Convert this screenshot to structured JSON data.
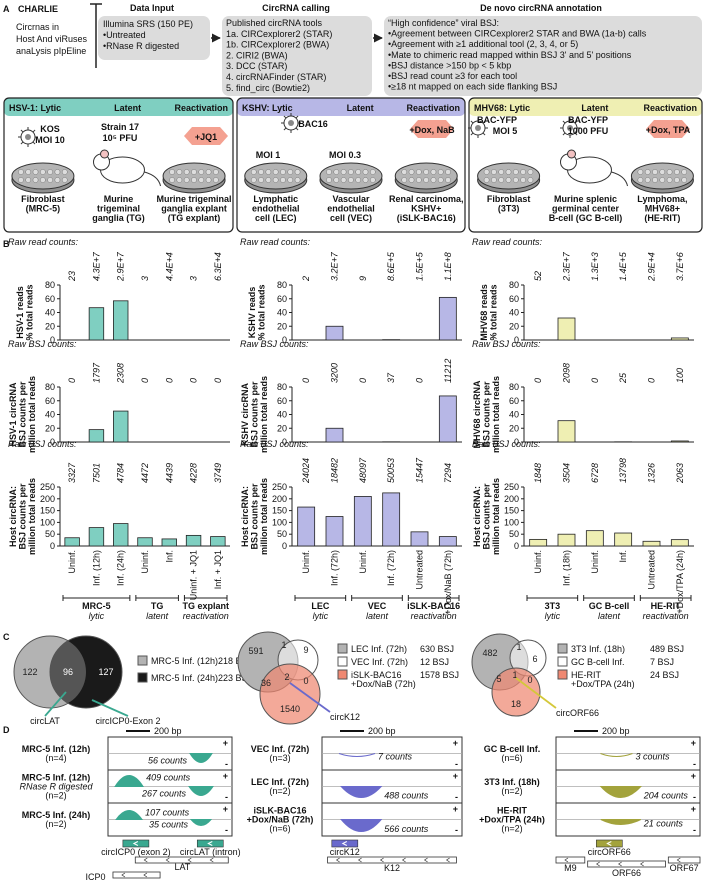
{
  "panel_labels": [
    "A",
    "B",
    "C",
    "D"
  ],
  "panel_a": {
    "charlie": {
      "title": "CHARLIE",
      "lines": [
        "Circrnas in",
        "Host And viRuses",
        "anaLysis pIpEline"
      ]
    },
    "data_input": {
      "title": "Data Input",
      "lines": [
        "Illumina SRS (150 PE)",
        "•Untreated",
        "•RNase R digested"
      ]
    },
    "circrna_calling": {
      "title": "CircRNA calling",
      "lines": [
        "Published circRNA tools",
        "1a. CIRCexplorer2 (STAR)",
        "1b. CIRCexplorer2 (BWA)",
        "2. CIRI2 (BWA)",
        "3. DCC (STAR)",
        "4. circRNAFinder (STAR)",
        "5. find_circ (Bowtie2)"
      ]
    },
    "annotation": {
      "title": "De novo circRNA annotation",
      "lines": [
        "“High confidence” viral BSJ:",
        "•Agreement between CIRCexplorer2 STAR and BWA (1a-b) calls",
        "•Agreement with ≥1 additional tool (2, 3, 4, or 5)",
        "•Mate to chimeric read mapped within BSJ 3' and 5' positions",
        "•BSJ distance >150 bp < 5 kbp",
        "•BSJ read count ≥3 for each tool",
        "•≥18 nt mapped on each side flanking BSJ"
      ]
    },
    "viruses": [
      {
        "header": [
          "HSV-1: Lytic",
          "Latent",
          "Reactivation"
        ],
        "color": "#7fcfc1",
        "annotations": [
          "KOS",
          "MOI 10",
          "Strain 17",
          "10⁵ PFU",
          "+JQ1"
        ],
        "cells": [
          [
            "Fibroblast",
            "(MRC-5)"
          ],
          [
            "Murine",
            "trigeminal",
            "ganglia (TG)"
          ],
          [
            "Murine trigeminal",
            "ganglia explant",
            "(TG explant)"
          ]
        ]
      },
      {
        "header": [
          "KSHV: Lytic",
          "Latent",
          "Reactivation"
        ],
        "color": "#b7b7e6",
        "annotations": [
          "BAC16",
          "MOI 1",
          "MOI 0.3",
          "+Dox, NaB"
        ],
        "cells": [
          [
            "Lymphatic",
            "endothelial",
            "cell (LEC)"
          ],
          [
            "Vascular",
            "endothelial",
            "cell (VEC)"
          ],
          [
            "Renal carcinoma,",
            "KSHV+",
            "(iSLK-BAC16)"
          ]
        ]
      },
      {
        "header": [
          "MHV68: Lytic",
          "Latent",
          "Reactivation"
        ],
        "color": "#efefb3",
        "annotations": [
          "BAC-YFP",
          "MOI 5",
          "BAC-YFP",
          "1000 PFU",
          "+Dox, TPA"
        ],
        "cells": [
          [
            "Fibroblast",
            "(3T3)"
          ],
          [
            "Murine splenic",
            "germinal center",
            "B-cell (GC B-cell)"
          ],
          [
            "Lymphoma,",
            "MHV68+",
            "(HE-RIT)"
          ]
        ]
      }
    ]
  },
  "chart_data": [
    {
      "type": "bar",
      "raw_label": "Raw read counts:",
      "raw_counts": [
        "23",
        "4.3E+7",
        "2.9E+7",
        "3",
        "4.4E+4",
        "3",
        "6.3E+4"
      ],
      "ylabel": [
        "HSV-1 reads",
        "% total reads"
      ],
      "values": [
        0,
        47,
        57,
        0,
        0,
        0,
        0
      ],
      "color": "#7fcfc1",
      "ylim": [
        0,
        80
      ],
      "yticks": [
        0,
        20,
        40,
        60,
        80
      ]
    },
    {
      "type": "bar",
      "raw_label": "Raw BSJ counts:",
      "raw_counts": [
        "0",
        "1797",
        "2308",
        "0",
        "0",
        "0",
        "0"
      ],
      "ylabel": [
        "HSV-1 circRNA",
        "BSJ counts per",
        "million total reads"
      ],
      "values": [
        0,
        18,
        45,
        0,
        0,
        0,
        0
      ],
      "color": "#7fcfc1",
      "ylim": [
        0,
        80
      ],
      "yticks": [
        0,
        20,
        40,
        60,
        80
      ]
    },
    {
      "type": "bar",
      "raw_label": "Raw BSJ counts:",
      "raw_counts": [
        "3327",
        "7501",
        "4784",
        "4472",
        "4439",
        "4228",
        "3749"
      ],
      "ylabel": [
        "Host circRNA:",
        "BSJ counts per",
        "million total reads"
      ],
      "values": [
        35,
        78,
        95,
        35,
        30,
        45,
        40
      ],
      "color": "#7fcfc1",
      "ylim": [
        0,
        250
      ],
      "yticks": [
        0,
        50,
        100,
        150,
        200,
        250
      ],
      "categories": [
        "Uninf.",
        "Inf. (12h)",
        "Inf. (24h)",
        "Uninf.",
        "Inf.",
        "Uninf. + JQ1",
        "Inf. + JQ1"
      ],
      "groups": [
        {
          "name": "MRC-5",
          "role": "lytic"
        },
        {
          "name": "TG",
          "role": "latent"
        },
        {
          "name": "TG explant",
          "role": "reactivation"
        }
      ]
    },
    {
      "type": "bar",
      "raw_label": "Raw read counts:",
      "raw_counts": [
        "2",
        "3.2E+7",
        "9",
        "8.6E+5",
        "1.5E+5",
        "1.1E+8"
      ],
      "ylabel": [
        "KSHV reads",
        "% total reads"
      ],
      "values": [
        0,
        20,
        0,
        0.5,
        0.1,
        62
      ],
      "color": "#b7b7e6",
      "ylim": [
        0,
        80
      ],
      "yticks": [
        0,
        20,
        40,
        60,
        80
      ]
    },
    {
      "type": "bar",
      "raw_label": "Raw BSJ counts:",
      "raw_counts": [
        "0",
        "3200",
        "0",
        "37",
        "0",
        "11212"
      ],
      "ylabel": [
        "KSHV circRNA",
        "BSJ counts per",
        "million total reads"
      ],
      "values": [
        0,
        20,
        0,
        0.3,
        0,
        67
      ],
      "color": "#b7b7e6",
      "ylim": [
        0,
        80
      ],
      "yticks": [
        0,
        20,
        40,
        60,
        80
      ]
    },
    {
      "type": "bar",
      "raw_label": "Raw BSJ counts:",
      "raw_counts": [
        "24024",
        "18482",
        "48097",
        "50053",
        "15447",
        "7294"
      ],
      "ylabel": [
        "Host circRNA:",
        "BSJ counts per",
        "million total reads"
      ],
      "values": [
        165,
        125,
        210,
        225,
        60,
        40
      ],
      "color": "#b7b7e6",
      "ylim": [
        0,
        250
      ],
      "yticks": [
        0,
        50,
        100,
        150,
        200,
        250
      ],
      "categories": [
        "Uninf.",
        "Inf. (72h)",
        "Uninf.",
        "Inf. (72h)",
        "Untreated",
        "+Dox/NaB (72h)"
      ],
      "groups": [
        {
          "name": "LEC",
          "role": "lytic"
        },
        {
          "name": "VEC",
          "role": "latent"
        },
        {
          "name": "iSLK-BAC16",
          "role": "reactivation"
        }
      ]
    },
    {
      "type": "bar",
      "raw_label": "Raw read counts:",
      "raw_counts": [
        "52",
        "2.3E+7",
        "1.3E+3",
        "1.4E+5",
        "2.9E+4",
        "3.7E+6"
      ],
      "ylabel": [
        "MHV68 reads",
        "% total reads"
      ],
      "values": [
        0,
        32,
        0,
        0.1,
        0,
        3
      ],
      "color": "#efefb3",
      "ylim": [
        0,
        80
      ],
      "yticks": [
        0,
        20,
        40,
        60,
        80
      ]
    },
    {
      "type": "bar",
      "raw_label": "Raw BSJ counts:",
      "raw_counts": [
        "0",
        "2098",
        "0",
        "25",
        "0",
        "100"
      ],
      "ylabel": [
        "MHV68 circRNA",
        "BSJ counts per",
        "million total reads"
      ],
      "values": [
        0,
        31,
        0,
        0.3,
        0,
        1.5
      ],
      "color": "#efefb3",
      "ylim": [
        0,
        80
      ],
      "yticks": [
        0,
        20,
        40,
        60,
        80
      ]
    },
    {
      "type": "bar",
      "raw_label": "Raw BSJ counts:",
      "raw_counts": [
        "1848",
        "3504",
        "6728",
        "13798",
        "1326",
        "2063"
      ],
      "ylabel": [
        "Host circRNA:",
        "BSJ counts per",
        "million total reads"
      ],
      "values": [
        28,
        50,
        65,
        55,
        20,
        27
      ],
      "color": "#efefb3",
      "ylim": [
        0,
        250
      ],
      "yticks": [
        0,
        50,
        100,
        150,
        200,
        250
      ],
      "categories": [
        "Uninf.",
        "Inf. (18h)",
        "Uninf.",
        "Inf.",
        "Untreated",
        "+Dox/TPA (24h)"
      ],
      "groups": [
        {
          "name": "3T3",
          "role": "lytic"
        },
        {
          "name": "GC B-cell",
          "role": "latent"
        },
        {
          "name": "HE-RIT",
          "role": "reactivation"
        }
      ]
    }
  ],
  "panel_c": {
    "venns": [
      {
        "sets": [
          {
            "name": [
              "MRC-5 Inf. (12h)"
            ],
            "count": "218 BSJ",
            "color": "#b3b3b3"
          },
          {
            "name": [
              "MRC-5 Inf. (24h)"
            ],
            "count": "223 BSJ",
            "color": "#1a1a1a"
          }
        ],
        "regions": [
          122,
          96,
          127
        ],
        "annotations": [
          "circLAT",
          "circICP0-Exon 2"
        ]
      },
      {
        "sets": [
          {
            "name": [
              "LEC Inf. (72h)"
            ],
            "count": "630 BSJ",
            "color": "#b3b3b3"
          },
          {
            "name": [
              "VEC Inf. (72h)"
            ],
            "count": "12 BSJ",
            "color": "#ffffff"
          },
          {
            "name": [
              "iSLK-BAC16",
              "+Dox/NaB (72h)"
            ],
            "count": "1578 BSJ",
            "color": "#ef8872"
          }
        ],
        "regions": [
          591,
          1,
          9,
          36,
          2,
          0,
          1540
        ],
        "annotations": [
          "circK12"
        ]
      },
      {
        "sets": [
          {
            "name": [
              "3T3 Inf. (18h)"
            ],
            "count": "489 BSJ",
            "color": "#b3b3b3"
          },
          {
            "name": [
              "GC B-cell Inf."
            ],
            "count": "7 BSJ",
            "color": "#ffffff"
          },
          {
            "name": [
              "HE-RIT",
              "+Dox/TPA (24h)"
            ],
            "count": "24 BSJ",
            "color": "#ef8872"
          }
        ],
        "regions": [
          482,
          1,
          6,
          5,
          1,
          0,
          18
        ],
        "annotations": [
          "circORF66"
        ]
      }
    ]
  },
  "panel_d": {
    "scale": "200 bp",
    "strands": [
      "+",
      "-"
    ],
    "loci": [
      {
        "color": "#3aa890",
        "tracks": [
          {
            "label": [
              "MRC-5 Inf. (12h)",
              "(n=4)"
            ],
            "counts": [
              "56 counts"
            ]
          },
          {
            "label": [
              "MRC-5 Inf. (12h)",
              "RNase R digested",
              "(n=2)"
            ],
            "counts": [
              "409 counts",
              "267 counts"
            ]
          },
          {
            "label": [
              "MRC-5 Inf. (24h)",
              "(n=2)"
            ],
            "counts": [
              "107 counts",
              "35 counts"
            ]
          }
        ],
        "features": [
          "circICP0 (exon 2)",
          "circLAT (intron)"
        ],
        "genes": [
          "LAT",
          "ICP0"
        ]
      },
      {
        "color": "#6a6acc",
        "tracks": [
          {
            "label": [
              "VEC Inf. (72h)",
              "(n=3)"
            ],
            "counts": [
              "7 counts"
            ]
          },
          {
            "label": [
              "LEC Inf. (72h)",
              "(n=2)"
            ],
            "counts": [
              "488 counts"
            ]
          },
          {
            "label": [
              "iSLK-BAC16",
              "+Dox/NaB (72h)",
              "(n=6)"
            ],
            "counts": [
              "566 counts"
            ]
          }
        ],
        "features": [
          "circK12"
        ],
        "genes": [
          "K12"
        ]
      },
      {
        "color": "#a3a33c",
        "tracks": [
          {
            "label": [
              "GC B-cell Inf.",
              "(n=6)"
            ],
            "counts": [
              "3 counts"
            ]
          },
          {
            "label": [
              "3T3 Inf. (18h)",
              "(n=2)"
            ],
            "counts": [
              "204 counts"
            ]
          },
          {
            "label": [
              "HE-RIT",
              "+Dox/TPA (24h)",
              "(n=2)"
            ],
            "counts": [
              "21 counts"
            ]
          }
        ],
        "features": [
          "circORF66"
        ],
        "genes": [
          "M9",
          "ORF66",
          "ORF67"
        ]
      }
    ]
  }
}
